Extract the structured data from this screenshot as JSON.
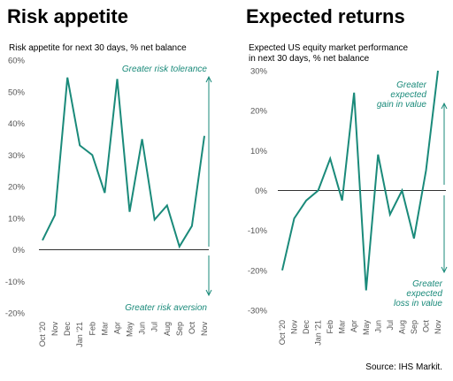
{
  "source": "Source: IHS Markit.",
  "colors": {
    "line": "#1a8a7a",
    "zero": "#333333"
  },
  "chart_data": [
    {
      "type": "line",
      "title": "Risk appetite",
      "subtitle": "Risk appetite for next 30 days, % net balance",
      "categories": [
        "Oct '20",
        "Nov",
        "Dec",
        "Jan '21",
        "Feb",
        "Mar",
        "Apr",
        "May",
        "Jun",
        "Jul",
        "Aug",
        "Sep",
        "Oct",
        "Nov"
      ],
      "series": [
        {
          "values": [
            3,
            11,
            54.5,
            33,
            30,
            18,
            54,
            12,
            35,
            9.5,
            14,
            1,
            7.5,
            36
          ]
        }
      ],
      "yticks": [
        "60%",
        "50%",
        "40%",
        "30%",
        "20%",
        "10%",
        "0%",
        "-10%",
        "-20%"
      ],
      "ylim": [
        -20,
        60
      ],
      "annotations": {
        "top": "Greater risk tolerance",
        "bottom": "Greater risk aversion"
      }
    },
    {
      "type": "line",
      "title": "Expected returns",
      "subtitle_lines": [
        "Expected US equity market performance",
        "in next 30 days, % net balance"
      ],
      "categories": [
        "Oct '20",
        "Nov",
        "Dec",
        "Jan '21",
        "Feb",
        "Mar",
        "Apr",
        "May",
        "Jun",
        "Jul",
        "Aug",
        "Sep",
        "Oct",
        "Nov"
      ],
      "series": [
        {
          "values": [
            -20,
            -7,
            -2.5,
            0,
            8,
            -2.5,
            24.5,
            -25,
            9,
            -6,
            0,
            -12,
            5,
            30
          ]
        }
      ],
      "yticks": [
        "30%",
        "20%",
        "10%",
        "0%",
        "-10%",
        "-20%",
        "-30%"
      ],
      "ylim": [
        -30,
        30
      ],
      "annotations": {
        "top": [
          "Greater",
          "expected",
          "gain in value"
        ],
        "bottom": [
          "Greater",
          "expected",
          "loss in value"
        ]
      }
    }
  ]
}
